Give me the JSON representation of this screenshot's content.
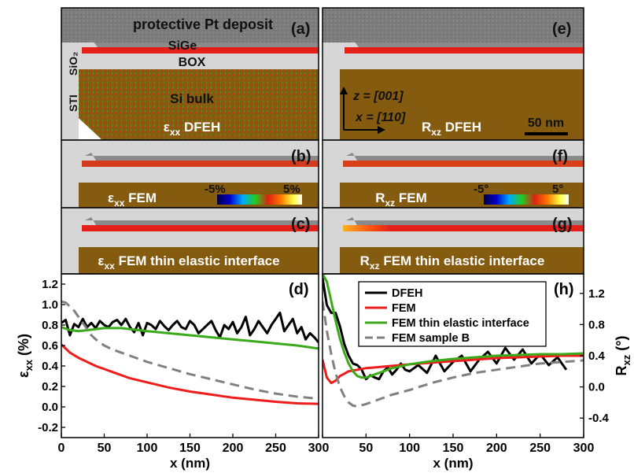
{
  "panels": {
    "a": {
      "letter": "(a)",
      "pt_label": "protective Pt deposit",
      "sige_label": "SiGe",
      "box_label": "BOX",
      "sio2_label": "SiO₂",
      "sti_label": "STI",
      "bulk_label": "Si bulk",
      "map_label": "εxx DFEH"
    },
    "b": {
      "letter": "(b)",
      "map_label": "εxx FEM",
      "scale_min": "-5%",
      "scale_max": "5%"
    },
    "c": {
      "letter": "(c)",
      "map_label": "εxx FEM thin elastic interface"
    },
    "e": {
      "letter": "(e)",
      "z_axis_label": "z = [001]",
      "x_axis_label": "x = [110]",
      "map_label": "Rxz DFEH",
      "scalebar_label": "50 nm"
    },
    "f": {
      "letter": "(f)",
      "map_label": "Rxz FEM",
      "scale_min": "-5°",
      "scale_max": "5°"
    },
    "g": {
      "letter": "(g)",
      "map_label": "Rxz FEM thin elastic interface"
    }
  },
  "colors": {
    "pt": "#7d7d7d",
    "oxide": "#d6d6d6",
    "si_bulk": "#855b10",
    "strain_red": "#e5201a",
    "dfeh": "#000000",
    "fem": "#ee1c1c",
    "fem_thin": "#3aaa1a",
    "fem_sample_b": "#808080"
  },
  "chart_data": [
    {
      "panel": "(d)",
      "type": "line",
      "xlabel": "x (nm)",
      "ylabel": "εxx (%)",
      "xlim": [
        0,
        300
      ],
      "ylim": [
        -0.3,
        1.3
      ],
      "xticks": [
        0,
        50,
        100,
        150,
        200,
        250,
        300
      ],
      "yticks": [
        -0.2,
        0.0,
        0.2,
        0.4,
        0.6,
        0.8,
        1.0,
        1.2
      ],
      "grid": false,
      "series": [
        {
          "name": "DFEH",
          "x": [
            0,
            5,
            10,
            15,
            20,
            25,
            30,
            35,
            40,
            45,
            50,
            55,
            60,
            65,
            70,
            75,
            80,
            85,
            90,
            95,
            100,
            105,
            110,
            115,
            120,
            125,
            130,
            135,
            140,
            145,
            150,
            155,
            160,
            165,
            170,
            175,
            180,
            185,
            190,
            195,
            200,
            205,
            210,
            215,
            220,
            225,
            230,
            235,
            240,
            245,
            250,
            255,
            260,
            265,
            270,
            275,
            280,
            285,
            290,
            295,
            300
          ],
          "y": [
            0.82,
            0.85,
            0.7,
            0.81,
            0.78,
            0.86,
            0.78,
            0.82,
            0.77,
            0.84,
            0.8,
            0.78,
            0.83,
            0.85,
            0.8,
            0.86,
            0.78,
            0.73,
            0.82,
            0.7,
            0.82,
            0.8,
            0.76,
            0.84,
            0.79,
            0.75,
            0.8,
            0.84,
            0.78,
            0.76,
            0.84,
            0.8,
            0.72,
            0.76,
            0.8,
            0.84,
            0.75,
            0.68,
            0.8,
            0.76,
            0.83,
            0.72,
            0.78,
            0.88,
            0.7,
            0.76,
            0.84,
            0.78,
            0.72,
            0.8,
            0.86,
            0.92,
            0.74,
            0.8,
            0.86,
            0.72,
            0.78,
            0.66,
            0.72,
            0.68,
            0.63
          ]
        },
        {
          "name": "FEM",
          "x": [
            0,
            5,
            10,
            20,
            30,
            40,
            50,
            60,
            80,
            100,
            125,
            150,
            175,
            200,
            225,
            250,
            275,
            300
          ],
          "y": [
            0.61,
            0.57,
            0.53,
            0.48,
            0.44,
            0.4,
            0.37,
            0.34,
            0.28,
            0.24,
            0.19,
            0.15,
            0.12,
            0.09,
            0.07,
            0.05,
            0.035,
            0.03
          ]
        },
        {
          "name": "FEM thin elastic interface",
          "x": [
            0,
            10,
            20,
            30,
            40,
            50,
            60,
            70,
            80,
            100,
            125,
            150,
            175,
            200,
            225,
            250,
            275,
            300
          ],
          "y": [
            0.78,
            0.75,
            0.74,
            0.75,
            0.76,
            0.77,
            0.77,
            0.77,
            0.76,
            0.74,
            0.72,
            0.7,
            0.68,
            0.66,
            0.64,
            0.62,
            0.6,
            0.57
          ]
        },
        {
          "name": "FEM sample B",
          "x": [
            0,
            5,
            10,
            15,
            20,
            25,
            30,
            35,
            40,
            50,
            60,
            80,
            100,
            125,
            150,
            175,
            200,
            225,
            250,
            275,
            300
          ],
          "y": [
            1.03,
            1.02,
            0.98,
            0.94,
            0.88,
            0.82,
            0.76,
            0.7,
            0.66,
            0.6,
            0.56,
            0.5,
            0.44,
            0.38,
            0.32,
            0.27,
            0.22,
            0.17,
            0.13,
            0.1,
            0.08
          ]
        }
      ]
    },
    {
      "panel": "(h)",
      "type": "line",
      "xlabel": "x (nm)",
      "ylabel": "Rxz (°)",
      "xlim": [
        0,
        300
      ],
      "ylim": [
        -0.65,
        1.45
      ],
      "xticks": [
        0,
        50,
        100,
        150,
        200,
        250,
        300
      ],
      "yticks": [
        -0.4,
        0.0,
        0.4,
        0.8,
        1.2
      ],
      "grid": false,
      "legend": "top-right",
      "series": [
        {
          "name": "DFEH",
          "x": [
            0,
            5,
            10,
            15,
            20,
            25,
            30,
            35,
            40,
            45,
            50,
            55,
            60,
            65,
            70,
            75,
            80,
            85,
            90,
            95,
            100,
            110,
            120,
            130,
            140,
            150,
            160,
            170,
            180,
            190,
            200,
            210,
            220,
            230,
            240,
            250,
            260,
            270,
            280
          ],
          "y": [
            1.4,
            1.05,
            0.95,
            0.95,
            0.78,
            0.55,
            0.4,
            0.3,
            0.28,
            0.22,
            0.1,
            0.15,
            0.12,
            0.1,
            0.2,
            0.25,
            0.16,
            0.22,
            0.3,
            0.22,
            0.2,
            0.28,
            0.18,
            0.4,
            0.2,
            0.32,
            0.4,
            0.2,
            0.35,
            0.45,
            0.3,
            0.5,
            0.35,
            0.48,
            0.3,
            0.42,
            0.28,
            0.38,
            0.22
          ]
        },
        {
          "name": "FEM",
          "x": [
            0,
            5,
            10,
            15,
            20,
            30,
            40,
            50,
            60,
            80,
            100,
            125,
            150,
            175,
            200,
            225,
            250,
            275,
            300
          ],
          "y": [
            0.35,
            0.12,
            0.05,
            0.08,
            0.14,
            0.2,
            0.22,
            0.24,
            0.25,
            0.27,
            0.29,
            0.31,
            0.33,
            0.35,
            0.37,
            0.38,
            0.39,
            0.4,
            0.4
          ]
        },
        {
          "name": "FEM thin elastic interface",
          "x": [
            0,
            5,
            10,
            15,
            20,
            25,
            30,
            35,
            40,
            45,
            50,
            55,
            60,
            70,
            80,
            100,
            125,
            150,
            175,
            200,
            225,
            250,
            275,
            300
          ],
          "y": [
            1.45,
            1.35,
            1.1,
            0.85,
            0.62,
            0.44,
            0.3,
            0.2,
            0.14,
            0.12,
            0.12,
            0.14,
            0.16,
            0.2,
            0.24,
            0.29,
            0.33,
            0.36,
            0.38,
            0.4,
            0.41,
            0.42,
            0.42,
            0.43
          ]
        },
        {
          "name": "FEM sample B",
          "x": [
            0,
            5,
            10,
            15,
            20,
            25,
            30,
            35,
            40,
            50,
            60,
            80,
            100,
            125,
            150,
            175,
            200,
            225,
            250,
            275,
            300
          ],
          "y": [
            1.1,
            0.72,
            0.42,
            0.18,
            0.0,
            -0.12,
            -0.2,
            -0.24,
            -0.25,
            -0.22,
            -0.18,
            -0.1,
            -0.04,
            0.05,
            0.12,
            0.18,
            0.22,
            0.26,
            0.3,
            0.32,
            0.34
          ]
        }
      ]
    }
  ]
}
